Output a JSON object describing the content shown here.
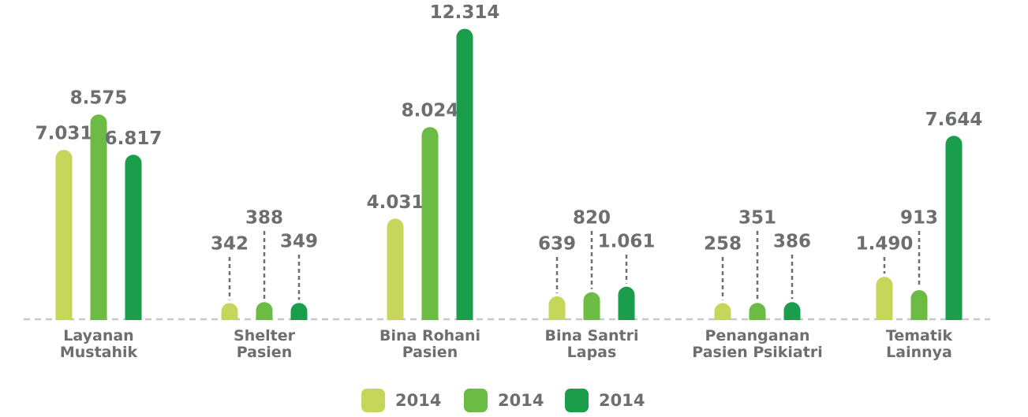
{
  "chart_data": {
    "type": "bar",
    "categories": [
      "Layanan\nMustahik",
      "Shelter\nPasien",
      "Bina Rohani\nPasien",
      "Bina Santri\nLapas",
      "Penanganan\nPasien Psikiatri",
      "Tematik\nLainnya"
    ],
    "series": [
      {
        "name": "2014",
        "color": "#c5d65a",
        "values": [
          7031,
          342,
          4031,
          639,
          258,
          1490
        ],
        "value_labels": [
          "7.031",
          "342",
          "4.031",
          "639",
          "258",
          "1.490"
        ]
      },
      {
        "name": "2014",
        "color": "#6bbb45",
        "values": [
          8575,
          388,
          8024,
          820,
          351,
          913
        ],
        "value_labels": [
          "8.575",
          "388",
          "8.024",
          "820",
          "351",
          "913"
        ]
      },
      {
        "name": "2014",
        "color": "#1a9e4c",
        "values": [
          6817,
          349,
          12314,
          1061,
          386,
          7644
        ],
        "value_labels": [
          "6.817",
          "349",
          "12.314",
          "1.061",
          "386",
          "7.644"
        ]
      }
    ],
    "legend": "bottom"
  }
}
